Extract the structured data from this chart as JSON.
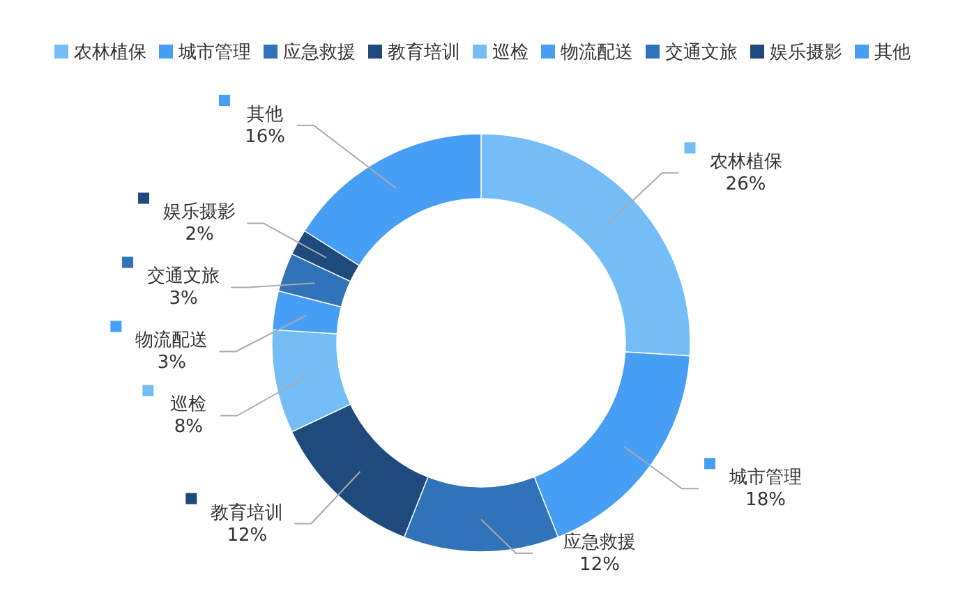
{
  "chart_data": {
    "type": "donut",
    "categories": [
      "农林植保",
      "城市管理",
      "应急救援",
      "教育培训",
      "巡检",
      "物流配送",
      "交通文旅",
      "娱乐摄影",
      "其他"
    ],
    "values": [
      26,
      18,
      12,
      12,
      8,
      3,
      3,
      2,
      16
    ],
    "colors": [
      "#75bdf7",
      "#479ff5",
      "#3073b8",
      "#1f4a7e",
      "#75bdf7",
      "#479ff5",
      "#3073b8",
      "#1f4a7e",
      "#479ff5"
    ],
    "value_labels": [
      "26%",
      "18%",
      "12%",
      "12%",
      "8%",
      "3%",
      "3%",
      "2%",
      "16%"
    ],
    "legend": "top"
  }
}
